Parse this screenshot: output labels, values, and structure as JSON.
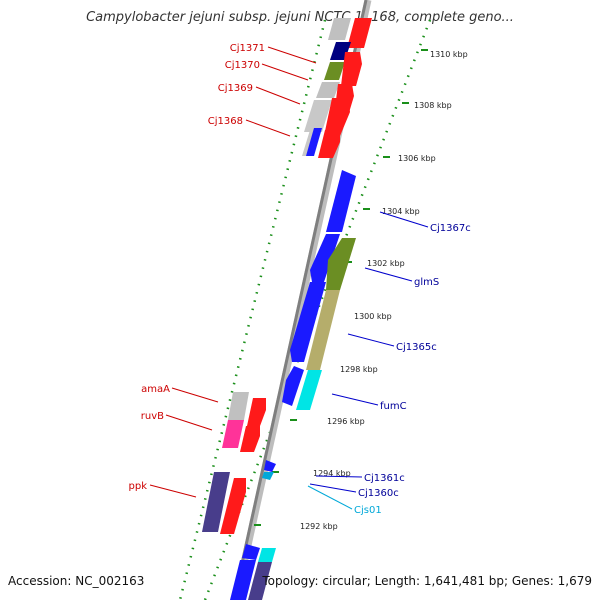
{
  "title": "Campylobacter jejuni subsp. jejuni NCTC 11168, complete geno...",
  "accession": "Accession: NC_002163",
  "topology": "Topology: circular; Length: 1,641,481 bp; Genes: 1,679",
  "colors": {
    "backbone": "#8a8a8a",
    "ruler": "#1a8f1a",
    "label_forward": "#cc0000",
    "label_reverse": "#000099",
    "label_rna": "#00a8d8",
    "leader": "#cc0000",
    "leader_reverse": "#0000cc"
  },
  "ticks": [
    {
      "label": "1310 kbp"
    },
    {
      "label": "1308 kbp"
    },
    {
      "label": "1306 kbp"
    },
    {
      "label": "1304 kbp"
    },
    {
      "label": "1302 kbp"
    },
    {
      "label": "1300 kbp"
    },
    {
      "label": "1298 kbp"
    },
    {
      "label": "1296 kbp"
    },
    {
      "label": "1294 kbp"
    },
    {
      "label": "1292 kbp"
    }
  ],
  "genes_forward": [
    {
      "label": "Cj1371"
    },
    {
      "label": "Cj1370"
    },
    {
      "label": "Cj1369"
    },
    {
      "label": "Cj1368"
    },
    {
      "label": "amaA"
    },
    {
      "label": "ruvB"
    },
    {
      "label": "ppk"
    }
  ],
  "genes_reverse": [
    {
      "label": "Cj1367c"
    },
    {
      "label": "glmS"
    },
    {
      "label": "Cj1365c"
    },
    {
      "label": "fumC"
    },
    {
      "label": "Cj1361c"
    },
    {
      "label": "Cj1360c"
    },
    {
      "label": "Cjs01"
    }
  ]
}
